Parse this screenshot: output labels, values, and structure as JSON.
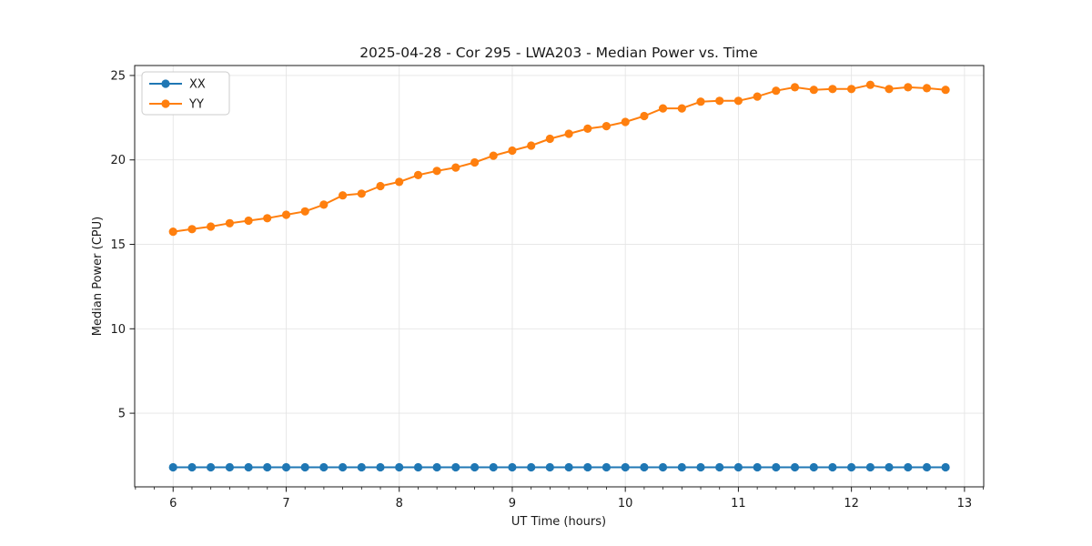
{
  "chart_data": {
    "type": "line",
    "title": "2025-04-28 - Cor 295 - LWA203 - Median Power vs. Time",
    "xlabel": "UT Time (hours)",
    "ylabel": "Median Power (CPU)",
    "xlim": [
      5.66,
      13.17
    ],
    "ylim": [
      0.64,
      25.59
    ],
    "x_major_ticks": [
      6,
      7,
      8,
      9,
      10,
      11,
      12,
      13
    ],
    "y_major_ticks": [
      5,
      10,
      15,
      20,
      25
    ],
    "x_minor_step": 0.16667,
    "grid": true,
    "grid_color": "#e5e5e5",
    "background_color": "#ffffff",
    "spine_color": "#1a1a1a",
    "legend_position": "upper-left",
    "marker": "circle",
    "x": [
      6.0,
      6.167,
      6.333,
      6.5,
      6.667,
      6.833,
      7.0,
      7.167,
      7.333,
      7.5,
      7.667,
      7.833,
      8.0,
      8.167,
      8.333,
      8.5,
      8.667,
      8.833,
      9.0,
      9.167,
      9.333,
      9.5,
      9.667,
      9.833,
      10.0,
      10.167,
      10.333,
      10.5,
      10.667,
      10.833,
      11.0,
      11.167,
      11.333,
      11.5,
      11.667,
      11.833,
      12.0,
      12.167,
      12.333,
      12.5,
      12.667,
      12.833
    ],
    "series": [
      {
        "name": "XX",
        "color": "#1f77b4",
        "values": [
          1.8,
          1.8,
          1.8,
          1.8,
          1.8,
          1.8,
          1.8,
          1.8,
          1.8,
          1.8,
          1.8,
          1.8,
          1.8,
          1.8,
          1.8,
          1.8,
          1.8,
          1.8,
          1.8,
          1.8,
          1.8,
          1.8,
          1.8,
          1.8,
          1.8,
          1.8,
          1.8,
          1.8,
          1.8,
          1.8,
          1.8,
          1.8,
          1.8,
          1.8,
          1.8,
          1.8,
          1.8,
          1.8,
          1.8,
          1.8,
          1.8,
          1.8
        ]
      },
      {
        "name": "YY",
        "color": "#ff7f0e",
        "values": [
          15.75,
          15.9,
          16.05,
          16.25,
          16.4,
          16.55,
          16.75,
          16.95,
          17.35,
          17.9,
          18.0,
          18.45,
          18.7,
          19.1,
          19.35,
          19.55,
          19.85,
          20.25,
          20.55,
          20.85,
          21.25,
          21.55,
          21.85,
          22.0,
          22.25,
          22.6,
          23.05,
          23.05,
          23.45,
          23.5,
          23.5,
          23.75,
          24.1,
          24.3,
          24.15,
          24.2,
          24.2,
          24.45,
          24.2,
          24.3,
          24.25,
          24.15
        ]
      }
    ]
  }
}
